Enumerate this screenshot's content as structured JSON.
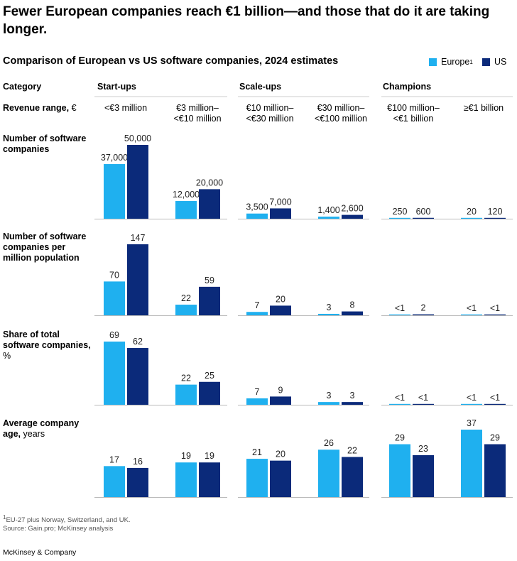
{
  "headline": "Fewer European companies reach €1 billion—and those that do it are taking longer.",
  "subtitle": "Comparison of European vs US software companies, 2024 estimates",
  "legend": {
    "europe": "Europe",
    "europe_sup": "1",
    "us": "US"
  },
  "colors": {
    "europe": "#1fb0ef",
    "us": "#0b2a7a",
    "rule": "#cccccc"
  },
  "header": {
    "category": "Category",
    "revenue_range": "Revenue range,",
    "revenue_unit": "€",
    "groups": [
      "Start-ups",
      "Scale-ups",
      "Champions"
    ]
  },
  "chart_data": {
    "type": "bar",
    "categories": [
      "<€3 million",
      "€3 million–\n<€10 million",
      "€10 million–\n<€30 million",
      "€30 million–\n<€100 million",
      "€100 million–\n<€1 billion",
      "≥€1 billion"
    ],
    "metrics": [
      {
        "label_bold": "Number of software companies",
        "label_rest": "",
        "europe": [
          37000,
          12000,
          3500,
          1400,
          250,
          20
        ],
        "us": [
          50000,
          20000,
          7000,
          2600,
          600,
          120
        ],
        "europe_labels": [
          "37,000",
          "12,000",
          "3,500",
          "1,400",
          "250",
          "20"
        ],
        "us_labels": [
          "50,000",
          "20,000",
          "7,000",
          "2,600",
          "600",
          "120"
        ]
      },
      {
        "label_bold": "Number of software companies per million population",
        "label_rest": "",
        "europe": [
          70,
          22,
          7,
          3,
          0.5,
          0.5
        ],
        "us": [
          147,
          59,
          20,
          8,
          2,
          0.5
        ],
        "europe_labels": [
          "70",
          "22",
          "7",
          "3",
          "<1",
          "<1"
        ],
        "us_labels": [
          "147",
          "59",
          "20",
          "8",
          "2",
          "<1"
        ]
      },
      {
        "label_bold": "Share of total software companies,",
        "label_rest": "%",
        "europe": [
          69,
          22,
          7,
          3,
          0.5,
          0.5
        ],
        "us": [
          62,
          25,
          9,
          3,
          0.5,
          0.5
        ],
        "europe_labels": [
          "69",
          "22",
          "7",
          "3",
          "<1",
          "<1"
        ],
        "us_labels": [
          "62",
          "25",
          "9",
          "3",
          "<1",
          "<1"
        ]
      },
      {
        "label_bold": "Average company age,",
        "label_rest": "years",
        "europe": [
          17,
          19,
          21,
          26,
          29,
          37
        ],
        "us": [
          16,
          19,
          20,
          22,
          23,
          29
        ],
        "europe_labels": [
          "17",
          "19",
          "21",
          "26",
          "29",
          "37"
        ],
        "us_labels": [
          "16",
          "19",
          "20",
          "22",
          "23",
          "29"
        ]
      }
    ]
  },
  "footnote_sup": "1",
  "footnote": "EU-27 plus Norway, Switzerland, and UK.",
  "source": "Source: Gain.pro; McKinsey analysis",
  "brand": "McKinsey & Company"
}
